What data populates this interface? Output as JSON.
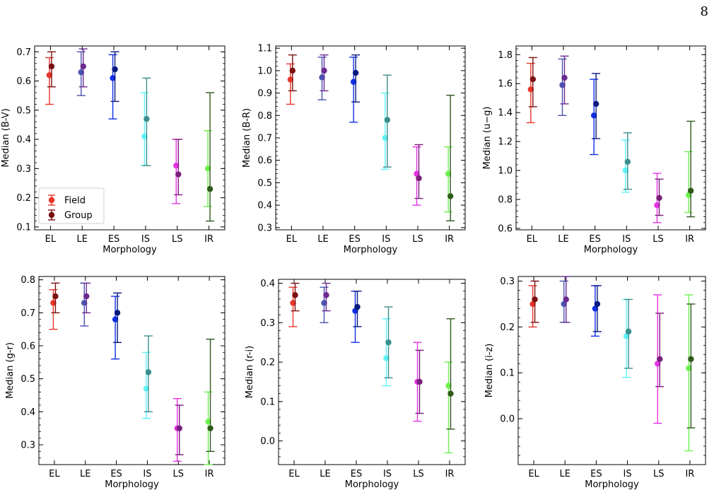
{
  "page_number": "8",
  "legend": {
    "field_label": "Field",
    "group_label": "Group"
  },
  "chart_data": [
    {
      "type": "scatter",
      "xlabel": "Morphology",
      "ylabel": "Median (B-V)",
      "categories": [
        "EL",
        "LE",
        "ES",
        "IS",
        "LS",
        "IR"
      ],
      "ylim": [
        0.09,
        0.72
      ],
      "yticks": [
        0.1,
        0.2,
        0.3,
        0.4,
        0.5,
        0.6,
        0.7
      ],
      "yticklabels": [
        "0.1",
        "0.2",
        "0.3",
        "0.4",
        "0.5",
        "0.6",
        "0.7"
      ],
      "legend_position": "lower-left",
      "series": [
        {
          "name": "Field",
          "values": [
            0.62,
            0.63,
            0.61,
            0.41,
            0.31,
            0.3
          ],
          "low": [
            0.52,
            0.55,
            0.47,
            0.31,
            0.18,
            0.17
          ],
          "high": [
            0.68,
            0.7,
            0.69,
            0.56,
            0.4,
            0.43
          ]
        },
        {
          "name": "Group",
          "values": [
            0.65,
            0.65,
            0.64,
            0.47,
            0.28,
            0.23
          ],
          "low": [
            0.58,
            0.58,
            0.53,
            0.31,
            0.21,
            0.12
          ],
          "high": [
            0.7,
            0.71,
            0.7,
            0.61,
            0.4,
            0.56
          ]
        }
      ]
    },
    {
      "type": "scatter",
      "xlabel": "Morphology",
      "ylabel": "Median (B-R)",
      "categories": [
        "EL",
        "LE",
        "ES",
        "IS",
        "LS",
        "IR"
      ],
      "ylim": [
        0.29,
        1.11
      ],
      "yticks": [
        0.3,
        0.4,
        0.5,
        0.6,
        0.7,
        0.8,
        0.9,
        1.0,
        1.1
      ],
      "yticklabels": [
        "0.3",
        "0.4",
        "0.5",
        "0.6",
        "0.7",
        "0.8",
        "0.9",
        "1.0",
        "1.1"
      ],
      "series": [
        {
          "name": "Field",
          "values": [
            0.96,
            0.97,
            0.95,
            0.7,
            0.54,
            0.54
          ],
          "low": [
            0.85,
            0.87,
            0.77,
            0.56,
            0.4,
            0.37
          ],
          "high": [
            1.03,
            1.06,
            1.06,
            0.9,
            0.66,
            0.66
          ]
        },
        {
          "name": "Group",
          "values": [
            1.0,
            1.0,
            0.99,
            0.78,
            0.52,
            0.44
          ],
          "low": [
            0.91,
            0.91,
            0.86,
            0.57,
            0.43,
            0.33
          ],
          "high": [
            1.07,
            1.07,
            1.07,
            0.98,
            0.67,
            0.89
          ]
        }
      ]
    },
    {
      "type": "scatter",
      "xlabel": "Morphology",
      "ylabel": "Median (u−g)",
      "categories": [
        "EL",
        "LE",
        "ES",
        "IS",
        "LS",
        "IR"
      ],
      "ylim": [
        0.59,
        1.86
      ],
      "yticks": [
        0.6,
        0.8,
        1.0,
        1.2,
        1.4,
        1.6,
        1.8
      ],
      "yticklabels": [
        "0.6",
        "0.8",
        "1.0",
        "1.2",
        "1.4",
        "1.6",
        "1.8"
      ],
      "series": [
        {
          "name": "Field",
          "values": [
            1.56,
            1.59,
            1.38,
            1.0,
            0.76,
            0.83
          ],
          "low": [
            1.33,
            1.38,
            1.11,
            0.85,
            0.64,
            0.71
          ],
          "high": [
            1.74,
            1.77,
            1.63,
            1.21,
            0.98,
            1.13
          ]
        },
        {
          "name": "Group",
          "values": [
            1.63,
            1.64,
            1.46,
            1.06,
            0.81,
            0.86
          ],
          "low": [
            1.44,
            1.46,
            1.22,
            0.87,
            0.69,
            0.68
          ],
          "high": [
            1.78,
            1.79,
            1.67,
            1.26,
            0.94,
            1.34
          ]
        }
      ]
    },
    {
      "type": "scatter",
      "xlabel": "Morphology",
      "ylabel": "Median (g-r)",
      "categories": [
        "EL",
        "LE",
        "ES",
        "IS",
        "LS",
        "IR"
      ],
      "ylim": [
        0.24,
        0.81
      ],
      "yticks": [
        0.3,
        0.4,
        0.5,
        0.6,
        0.7,
        0.8
      ],
      "yticklabels": [
        "0.3",
        "0.4",
        "0.5",
        "0.6",
        "0.7",
        "0.8"
      ],
      "series": [
        {
          "name": "Field",
          "values": [
            0.73,
            0.73,
            0.68,
            0.47,
            0.35,
            0.37
          ],
          "low": [
            0.65,
            0.66,
            0.56,
            0.38,
            0.25,
            0.24
          ],
          "high": [
            0.77,
            0.79,
            0.75,
            0.58,
            0.44,
            0.46
          ]
        },
        {
          "name": "Group",
          "values": [
            0.75,
            0.75,
            0.7,
            0.52,
            0.35,
            0.35
          ],
          "low": [
            0.7,
            0.7,
            0.61,
            0.4,
            0.27,
            0.28
          ],
          "high": [
            0.79,
            0.79,
            0.76,
            0.63,
            0.42,
            0.62
          ]
        }
      ]
    },
    {
      "type": "scatter",
      "xlabel": "Morphology",
      "ylabel": "Median (r-i)",
      "categories": [
        "EL",
        "LE",
        "ES",
        "IS",
        "LS",
        "IR"
      ],
      "ylim": [
        -0.06,
        0.41
      ],
      "yticks": [
        0.0,
        0.1,
        0.2,
        0.3,
        0.4
      ],
      "yticklabels": [
        "0.0",
        "0.1",
        "0.2",
        "0.3",
        "0.4"
      ],
      "series": [
        {
          "name": "Field",
          "values": [
            0.35,
            0.35,
            0.33,
            0.21,
            0.15,
            0.14
          ],
          "low": [
            0.29,
            0.3,
            0.25,
            0.14,
            0.05,
            -0.03
          ],
          "high": [
            0.39,
            0.39,
            0.38,
            0.31,
            0.25,
            0.2
          ]
        },
        {
          "name": "Group",
          "values": [
            0.37,
            0.37,
            0.34,
            0.25,
            0.15,
            0.12
          ],
          "low": [
            0.33,
            0.33,
            0.29,
            0.16,
            0.07,
            0.03
          ],
          "high": [
            0.4,
            0.4,
            0.38,
            0.34,
            0.23,
            0.31
          ]
        }
      ]
    },
    {
      "type": "scatter",
      "xlabel": "Morphology",
      "ylabel": "Median (i-z)",
      "categories": [
        "EL",
        "LE",
        "ES",
        "IS",
        "LS",
        "IR"
      ],
      "ylim": [
        -0.1,
        0.31
      ],
      "yticks": [
        0.0,
        0.1,
        0.2,
        0.3
      ],
      "yticklabels": [
        "0.0",
        "0.1",
        "0.2",
        "0.3"
      ],
      "series": [
        {
          "name": "Field",
          "values": [
            0.25,
            0.25,
            0.24,
            0.18,
            0.12,
            0.11
          ],
          "low": [
            0.2,
            0.21,
            0.18,
            0.09,
            -0.01,
            -0.07
          ],
          "high": [
            0.29,
            0.3,
            0.29,
            0.26,
            0.27,
            0.27
          ]
        },
        {
          "name": "Group",
          "values": [
            0.26,
            0.26,
            0.25,
            0.19,
            0.13,
            0.13
          ],
          "low": [
            0.21,
            0.21,
            0.19,
            0.11,
            0.07,
            -0.02
          ],
          "high": [
            0.3,
            0.31,
            0.29,
            0.26,
            0.23,
            0.25
          ]
        }
      ]
    }
  ],
  "colors": {
    "field": [
      "#e8352a",
      "#4a52b0",
      "#0f2fe6",
      "#5ff2f5",
      "#e633e3",
      "#6ef04f"
    ],
    "group": [
      "#7a1010",
      "#6b2a92",
      "#0a1a80",
      "#3a8e8c",
      "#7a1f7c",
      "#2e5a1c"
    ]
  }
}
